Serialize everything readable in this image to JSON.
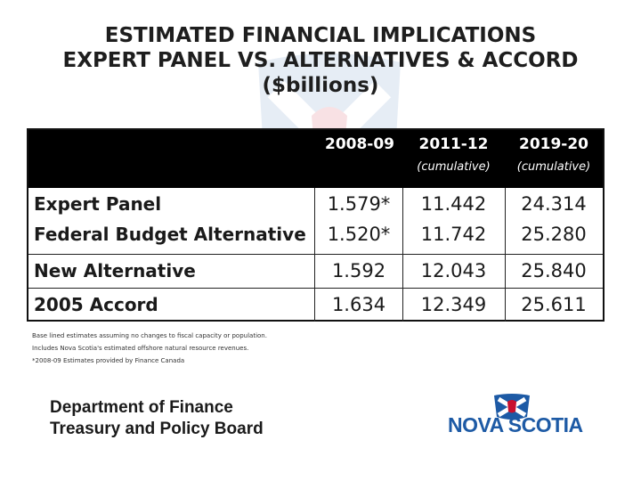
{
  "title": {
    "line1": "ESTIMATED FINANCIAL IMPLICATIONS",
    "line2": "EXPERT PANEL VS. ALTERNATIVES & ACCORD",
    "line3": "($billions)"
  },
  "table": {
    "columns": [
      {
        "year": "2008-09",
        "sub": ""
      },
      {
        "year": "2011-12",
        "sub": "(cumulative)"
      },
      {
        "year": "2019-20",
        "sub": "(cumulative)"
      }
    ],
    "rows": [
      {
        "label": "Expert Panel",
        "values": [
          "1.579*",
          "11.442",
          "24.314"
        ]
      },
      {
        "label": "Federal Budget Alternative",
        "values": [
          "1.520*",
          "11.742",
          "25.280"
        ]
      },
      {
        "label": "New Alternative",
        "values": [
          "1.592",
          "12.043",
          "25.840"
        ]
      },
      {
        "label": "2005 Accord",
        "values": [
          "1.634",
          "12.349",
          "25.611"
        ]
      }
    ]
  },
  "notes": [
    "Base lined estimates assuming no changes to fiscal capacity or population.",
    "Includes Nova Scotia's estimated offshore natural resource revenues.",
    "*2008-09 Estimates provided by Finance Canada"
  ],
  "footer": {
    "dept_line1": "Department of Finance",
    "dept_line2": "Treasury and Policy Board",
    "logo_text": "NOVA SCOTIA"
  },
  "colors": {
    "header_bg": "#000000",
    "logo_blue": "#1d5aa5",
    "logo_red": "#c8102e"
  }
}
